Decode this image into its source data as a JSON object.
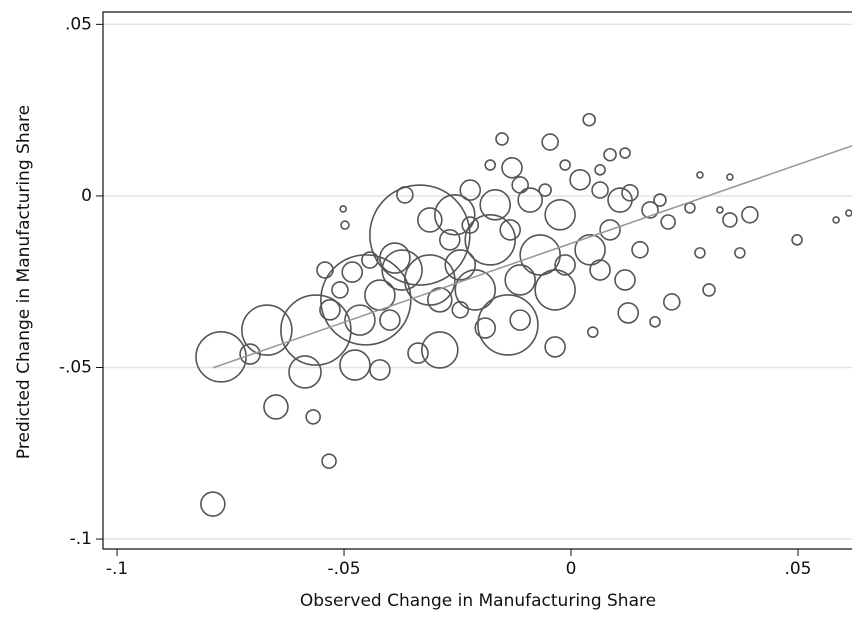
{
  "chart_data": {
    "type": "scatter",
    "x_label": "Observed Change in Manufacturing Share",
    "y_label": "Predicted Change in Manufacturing Share",
    "xlim": [
      -0.1031,
      0.0619
    ],
    "ylim": [
      -0.1029,
      0.0536
    ],
    "xticks": [
      {
        "value": -0.1,
        "label": "-.1"
      },
      {
        "value": -0.05,
        "label": "-.05"
      },
      0,
      {
        "value": 0.05,
        "label": ".05"
      }
    ],
    "yticks": [
      {
        "value": -0.1,
        "label": "-.1"
      },
      {
        "value": -0.05,
        "label": "-.05"
      },
      0,
      {
        "value": 0.05,
        "label": ".05"
      }
    ],
    "grid": true,
    "color": "#555555",
    "x": [
      -0.0789,
      -0.065,
      -0.0568,
      -0.0533,
      -0.0771,
      -0.067,
      -0.0586,
      -0.0562,
      -0.0707,
      -0.0452,
      -0.0333,
      -0.0139,
      -0.0289,
      -0.0035,
      -0.0178,
      -0.0035,
      -0.0256,
      -0.013,
      -0.0046,
      0.004,
      -0.0152,
      0.0394,
      0.0498,
      0.0612,
      0.0584,
      0.0304,
      0.0222,
      0.0126,
      0.0185,
      0.0048,
      0.0214,
      0.0284,
      0.035,
      0.0372,
      -0.0498,
      -0.0502,
      -0.0421,
      -0.0399,
      -0.0482,
      -0.0372,
      -0.0222,
      -0.0167,
      -0.009,
      -0.0024,
      0.002,
      0.0064,
      0.0108,
      0.013,
      0.0086,
      0.0042,
      -0.0068,
      -0.0112,
      -0.0211,
      -0.0244,
      -0.0311,
      -0.0388,
      -0.0465,
      -0.0476,
      -0.0421,
      -0.0337,
      -0.0189,
      -0.0112,
      -0.0013,
      0.0064,
      0.0119,
      0.0152,
      0.0174,
      0.0196,
      0.0262,
      -0.0112,
      -0.0057,
      -0.0178,
      0.0086,
      0.0119,
      -0.0013,
      0.0064,
      -0.0366,
      -0.0311,
      -0.0267,
      -0.0134,
      -0.0222,
      -0.0289,
      -0.0244,
      -0.0531,
      -0.0509,
      -0.0542,
      -0.0443,
      0.0328,
      0.0284,
      0.035
    ],
    "y": [
      -0.0898,
      -0.0615,
      -0.0644,
      -0.0773,
      -0.0469,
      -0.0391,
      -0.0513,
      -0.0391,
      -0.0461,
      -0.0303,
      -0.0114,
      -0.0376,
      -0.0449,
      -0.044,
      -0.0128,
      -0.0274,
      -0.0055,
      0.0082,
      0.0157,
      0.0222,
      0.0166,
      -0.0055,
      -0.0128,
      -0.005,
      -0.007,
      -0.0274,
      -0.0309,
      -0.0341,
      -0.0367,
      -0.0397,
      -0.0076,
      -0.0166,
      -0.007,
      -0.0166,
      -0.0085,
      -0.0038,
      -0.0289,
      -0.0362,
      -0.0222,
      -0.0216,
      0.0017,
      -0.0026,
      -0.0012,
      -0.0055,
      0.0047,
      0.0017,
      -0.0012,
      0.0009,
      -0.0099,
      -0.0157,
      -0.0172,
      -0.0245,
      -0.0274,
      -0.0201,
      -0.0245,
      -0.0181,
      -0.0362,
      -0.0493,
      -0.0507,
      -0.0458,
      -0.0385,
      -0.0362,
      -0.0201,
      -0.0216,
      -0.0245,
      -0.0157,
      -0.0041,
      -0.0012,
      -0.0035,
      0.0032,
      0.0017,
      0.009,
      0.012,
      0.0125,
      0.009,
      0.0076,
      0.0003,
      -0.007,
      -0.0128,
      -0.0099,
      -0.0085,
      -0.0303,
      -0.0332,
      -0.0332,
      -0.0274,
      -0.0216,
      -0.0187,
      -0.0041,
      0.0061,
      0.0055
    ],
    "sizes": [
      12,
      12,
      7,
      7,
      25,
      25,
      16,
      35,
      10,
      45,
      50,
      30,
      18,
      10,
      25,
      20,
      20,
      10,
      8,
      6,
      6,
      8,
      5,
      3,
      3,
      6,
      8,
      10,
      5,
      5,
      7,
      5,
      7,
      5,
      4,
      3,
      15,
      10,
      10,
      20,
      10,
      15,
      12,
      15,
      10,
      8,
      12,
      8,
      10,
      15,
      20,
      15,
      20,
      15,
      25,
      15,
      15,
      15,
      10,
      10,
      10,
      10,
      10,
      10,
      10,
      8,
      8,
      6,
      5,
      8,
      6,
      5,
      6,
      5,
      5,
      5,
      8,
      12,
      10,
      10,
      8,
      12,
      8,
      10,
      8,
      8,
      8,
      3,
      3,
      3
    ],
    "fit_line": {
      "color": "#999999",
      "x": [
        -0.0789,
        0.0619
      ],
      "y": [
        -0.0501,
        0.0146
      ]
    }
  }
}
